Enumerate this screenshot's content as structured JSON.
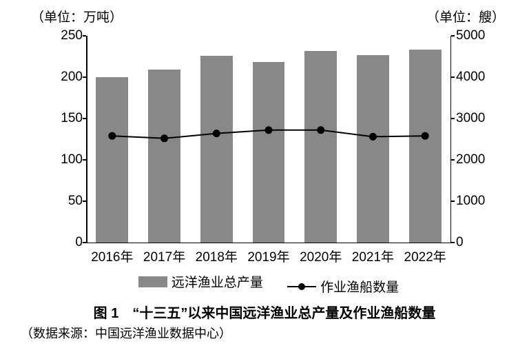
{
  "unit_left": "（单位：万吨）",
  "unit_right": "（单位：艘）",
  "chart": {
    "type": "bar+line",
    "categories": [
      "2016年",
      "2017年",
      "2018年",
      "2019年",
      "2020年",
      "2021年",
      "2022年"
    ],
    "bars": {
      "values": [
        200,
        209,
        226,
        218,
        232,
        227,
        233
      ],
      "color": "#888888",
      "bar_width_frac": 0.62
    },
    "line": {
      "values": [
        2580,
        2520,
        2640,
        2720,
        2720,
        2560,
        2580
      ],
      "color": "#000000",
      "marker_radius": 5.5,
      "line_width": 2
    },
    "y_left": {
      "min": 0,
      "max": 250,
      "step": 50
    },
    "y_right": {
      "min": 0,
      "max": 5000,
      "step": 1000
    },
    "background_color": "#ffffff",
    "axis_color": "#000000",
    "font_size": 19
  },
  "legend": {
    "bar_label": "远洋渔业总产量",
    "line_label": "作业渔船数量"
  },
  "caption": "图 1　“十三五”以来中国远洋渔业总产量及作业渔船数量",
  "source": "（数据来源：中国远洋渔业数据中心）"
}
